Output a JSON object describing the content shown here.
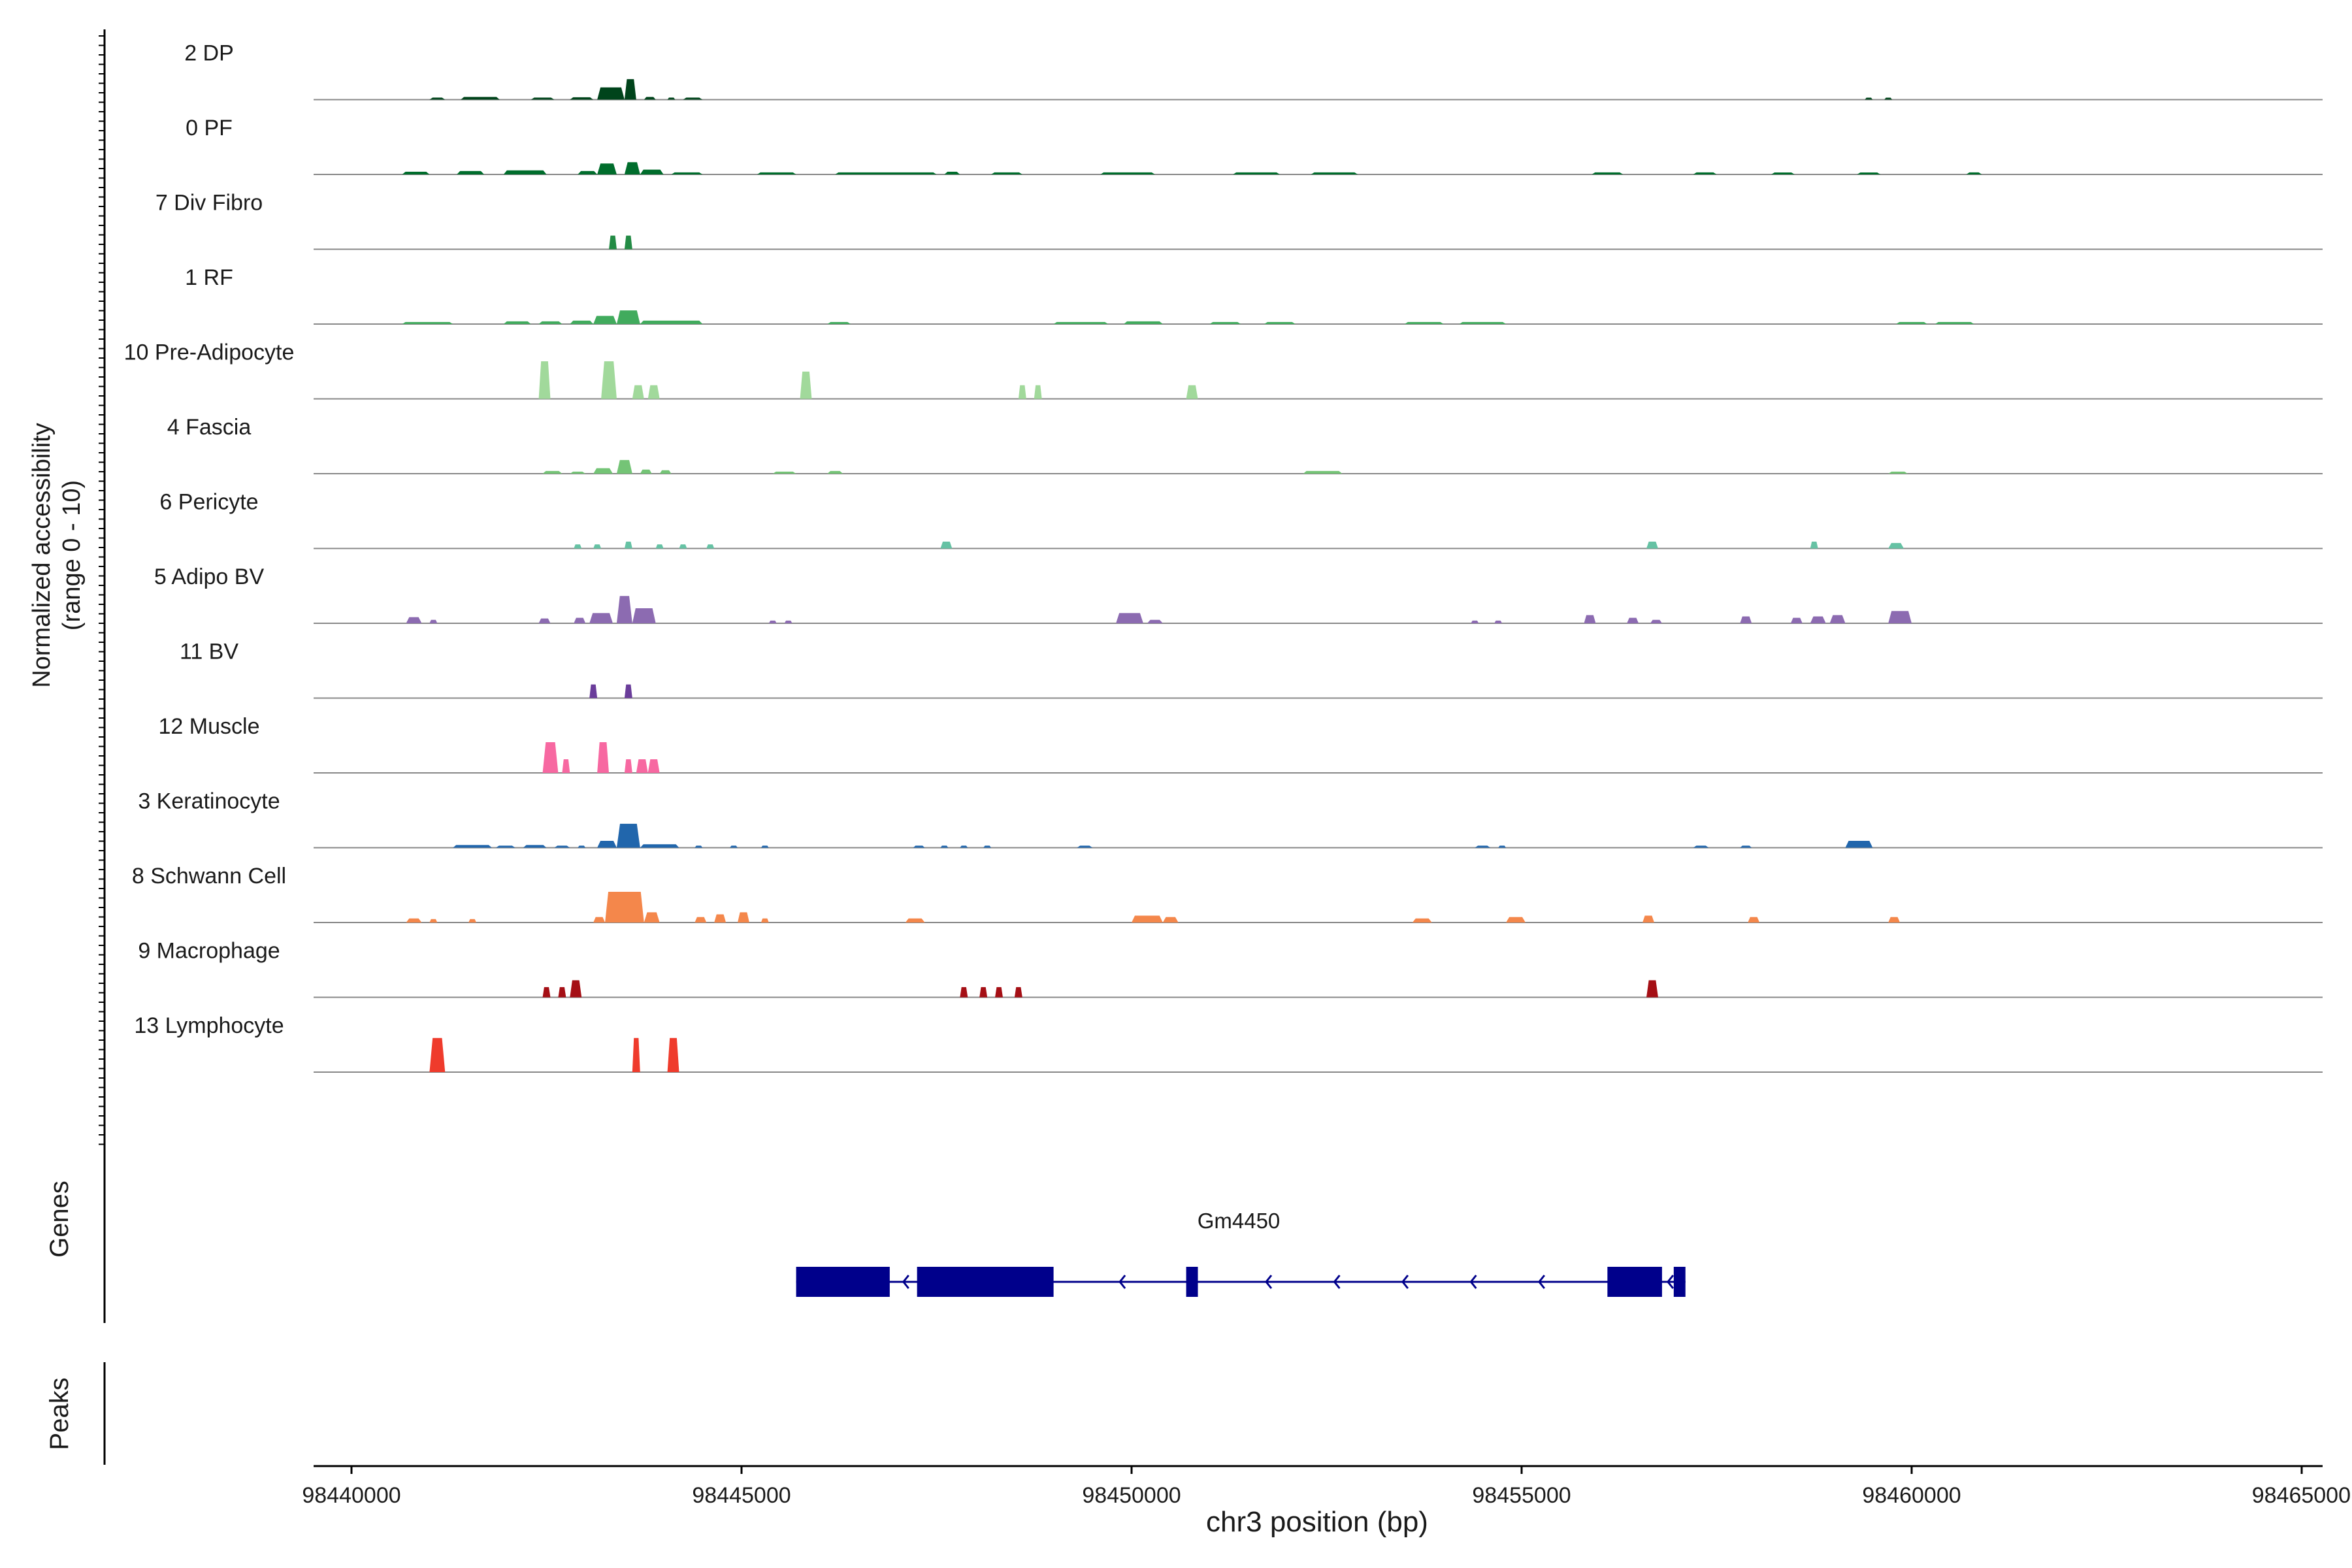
{
  "chart_data": {
    "type": "area",
    "title": "",
    "xlabel": "chr3 position (bp)",
    "ylabel": "Normalized accessibility",
    "ylabel_range": "(range 0 - 10)",
    "xlim": [
      98439500,
      98465000
    ],
    "x_ticks": [
      98440000,
      98445000,
      98450000,
      98455000,
      98460000,
      98465000
    ],
    "x_tick_labels": [
      "98440000",
      "98445000",
      "98450000",
      "98455000",
      "98460000",
      "98465000"
    ],
    "ylim": [
      0,
      10
    ],
    "grid": false,
    "legend": "none",
    "tracks": [
      {
        "name": "2 DP",
        "color": "#00441b",
        "peaks": [
          [
            98441000,
            98441200,
            0.3
          ],
          [
            98441400,
            98441900,
            0.4
          ],
          [
            98442300,
            98442600,
            0.3
          ],
          [
            98442800,
            98443100,
            0.35
          ],
          [
            98443150,
            98443500,
            1.8
          ],
          [
            98443500,
            98443650,
            3.0
          ],
          [
            98443750,
            98443900,
            0.4
          ],
          [
            98444050,
            98444150,
            0.3
          ],
          [
            98444250,
            98444500,
            0.3
          ],
          [
            98459400,
            98459500,
            0.2
          ],
          [
            98459650,
            98459750,
            0.2
          ]
        ]
      },
      {
        "name": "0 PF",
        "color": "#006d2c",
        "peaks": [
          [
            98440650,
            98441000,
            0.4
          ],
          [
            98441350,
            98441700,
            0.5
          ],
          [
            98441950,
            98442500,
            0.6
          ],
          [
            98442900,
            98443150,
            0.5
          ],
          [
            98443150,
            98443400,
            1.6
          ],
          [
            98443500,
            98443700,
            1.8
          ],
          [
            98443700,
            98444000,
            0.7
          ],
          [
            98444100,
            98444500,
            0.3
          ],
          [
            98445200,
            98445700,
            0.3
          ],
          [
            98446200,
            98447500,
            0.3
          ],
          [
            98447600,
            98447800,
            0.4
          ],
          [
            98448200,
            98448600,
            0.3
          ],
          [
            98449600,
            98450300,
            0.3
          ],
          [
            98451300,
            98451900,
            0.3
          ],
          [
            98452300,
            98452900,
            0.3
          ],
          [
            98455900,
            98456300,
            0.3
          ],
          [
            98457200,
            98457500,
            0.3
          ],
          [
            98458200,
            98458500,
            0.2
          ],
          [
            98459300,
            98459600,
            0.2
          ],
          [
            98460700,
            98460900,
            0.3
          ]
        ]
      },
      {
        "name": "7 Div Fibro",
        "color": "#238b45",
        "peaks": [
          [
            98443300,
            98443400,
            2.0
          ],
          [
            98443500,
            98443600,
            2.0
          ]
        ]
      },
      {
        "name": "1 RF",
        "color": "#41ab5d",
        "peaks": [
          [
            98440650,
            98441300,
            0.3
          ],
          [
            98441950,
            98442300,
            0.4
          ],
          [
            98442400,
            98442700,
            0.4
          ],
          [
            98442800,
            98443100,
            0.5
          ],
          [
            98443100,
            98443400,
            1.2
          ],
          [
            98443400,
            98443700,
            2.0
          ],
          [
            98443700,
            98444500,
            0.5
          ],
          [
            98446100,
            98446400,
            0.3
          ],
          [
            98449000,
            98449700,
            0.3
          ],
          [
            98449900,
            98450400,
            0.4
          ],
          [
            98451000,
            98451400,
            0.3
          ],
          [
            98451700,
            98452100,
            0.3
          ],
          [
            98453500,
            98454000,
            0.3
          ],
          [
            98454200,
            98454800,
            0.3
          ],
          [
            98459800,
            98460200,
            0.3
          ],
          [
            98460300,
            98460800,
            0.3
          ]
        ]
      },
      {
        "name": "10 Pre-Adipocyte",
        "color": "#a1d99b",
        "peaks": [
          [
            98442400,
            98442550,
            5.5
          ],
          [
            98443200,
            98443400,
            5.5
          ],
          [
            98443600,
            98443750,
            2.0
          ],
          [
            98443800,
            98443950,
            2.0
          ],
          [
            98445750,
            98445900,
            4.0
          ],
          [
            98448550,
            98448650,
            2.0
          ],
          [
            98448750,
            98448850,
            2.0
          ],
          [
            98450700,
            98450850,
            2.0
          ]
        ]
      },
      {
        "name": "4 Fascia",
        "color": "#74c476",
        "peaks": [
          [
            98442450,
            98442700,
            0.4
          ],
          [
            98442800,
            98443000,
            0.3
          ],
          [
            98443100,
            98443350,
            0.8
          ],
          [
            98443400,
            98443600,
            2.0
          ],
          [
            98443700,
            98443850,
            0.6
          ],
          [
            98443950,
            98444100,
            0.5
          ],
          [
            98445400,
            98445700,
            0.3
          ],
          [
            98446100,
            98446300,
            0.4
          ],
          [
            98452200,
            98452700,
            0.4
          ],
          [
            98459700,
            98459950,
            0.3
          ]
        ]
      },
      {
        "name": "6 Pericyte",
        "color": "#66c2a4",
        "peaks": [
          [
            98442850,
            98442950,
            0.6
          ],
          [
            98443100,
            98443200,
            0.6
          ],
          [
            98443500,
            98443600,
            1.0
          ],
          [
            98443900,
            98444000,
            0.6
          ],
          [
            98444200,
            98444300,
            0.6
          ],
          [
            98444550,
            98444650,
            0.6
          ],
          [
            98447550,
            98447700,
            1.0
          ],
          [
            98456600,
            98456750,
            1.0
          ],
          [
            98458700,
            98458800,
            1.0
          ],
          [
            98459700,
            98459900,
            0.8
          ]
        ]
      },
      {
        "name": "5 Adipo BV",
        "color": "#8c6bb1",
        "peaks": [
          [
            98440700,
            98440900,
            0.9
          ],
          [
            98441000,
            98441100,
            0.5
          ],
          [
            98442400,
            98442550,
            0.7
          ],
          [
            98442850,
            98443000,
            0.8
          ],
          [
            98443050,
            98443350,
            1.5
          ],
          [
            98443400,
            98443600,
            4.0
          ],
          [
            98443600,
            98443900,
            2.2
          ],
          [
            98445350,
            98445450,
            0.4
          ],
          [
            98445550,
            98445650,
            0.4
          ],
          [
            98449800,
            98450150,
            1.5
          ],
          [
            98450200,
            98450400,
            0.5
          ],
          [
            98454350,
            98454450,
            0.4
          ],
          [
            98454650,
            98454750,
            0.4
          ],
          [
            98455800,
            98455950,
            1.2
          ],
          [
            98456350,
            98456500,
            0.8
          ],
          [
            98456650,
            98456800,
            0.5
          ],
          [
            98457800,
            98457950,
            1.0
          ],
          [
            98458450,
            98458600,
            0.8
          ],
          [
            98458700,
            98458900,
            1.0
          ],
          [
            98458950,
            98459150,
            1.2
          ],
          [
            98459700,
            98460000,
            1.8
          ]
        ]
      },
      {
        "name": "11 BV",
        "color": "#6a3d9a",
        "peaks": [
          [
            98443050,
            98443150,
            2.0
          ],
          [
            98443500,
            98443600,
            2.0
          ]
        ]
      },
      {
        "name": "12 Muscle",
        "color": "#f768a1",
        "peaks": [
          [
            98442450,
            98442650,
            4.5
          ],
          [
            98442700,
            98442800,
            2.0
          ],
          [
            98443150,
            98443300,
            4.5
          ],
          [
            98443500,
            98443600,
            2.0
          ],
          [
            98443650,
            98443800,
            2.0
          ],
          [
            98443800,
            98443950,
            2.0
          ]
        ]
      },
      {
        "name": "3 Keratinocyte",
        "color": "#2166ac",
        "peaks": [
          [
            98441300,
            98441800,
            0.4
          ],
          [
            98441850,
            98442100,
            0.3
          ],
          [
            98442200,
            98442500,
            0.4
          ],
          [
            98442600,
            98442800,
            0.3
          ],
          [
            98442900,
            98443000,
            0.3
          ],
          [
            98443150,
            98443400,
            1.0
          ],
          [
            98443400,
            98443700,
            3.5
          ],
          [
            98443700,
            98444200,
            0.5
          ],
          [
            98444400,
            98444500,
            0.3
          ],
          [
            98444850,
            98444950,
            0.3
          ],
          [
            98445250,
            98445350,
            0.3
          ],
          [
            98447200,
            98447350,
            0.3
          ],
          [
            98447550,
            98447650,
            0.3
          ],
          [
            98447800,
            98447900,
            0.3
          ],
          [
            98448100,
            98448200,
            0.3
          ],
          [
            98449300,
            98449500,
            0.3
          ],
          [
            98454400,
            98454600,
            0.3
          ],
          [
            98454700,
            98454800,
            0.3
          ],
          [
            98457200,
            98457400,
            0.3
          ],
          [
            98457800,
            98457950,
            0.3
          ],
          [
            98459150,
            98459500,
            1.0
          ]
        ]
      },
      {
        "name": "8 Schwann Cell",
        "color": "#f4874b",
        "peaks": [
          [
            98440700,
            98440900,
            0.6
          ],
          [
            98441000,
            98441100,
            0.5
          ],
          [
            98441500,
            98441600,
            0.5
          ],
          [
            98443100,
            98443250,
            0.8
          ],
          [
            98443250,
            98443750,
            4.5
          ],
          [
            98443750,
            98443950,
            1.5
          ],
          [
            98444400,
            98444550,
            0.8
          ],
          [
            98444650,
            98444800,
            1.2
          ],
          [
            98444950,
            98445100,
            1.5
          ],
          [
            98445250,
            98445350,
            0.6
          ],
          [
            98447100,
            98447350,
            0.6
          ],
          [
            98450000,
            98450400,
            1.0
          ],
          [
            98450400,
            98450600,
            0.8
          ],
          [
            98453600,
            98453850,
            0.6
          ],
          [
            98454800,
            98455050,
            0.8
          ],
          [
            98456550,
            98456700,
            1.0
          ],
          [
            98457900,
            98458050,
            0.8
          ],
          [
            98459700,
            98459850,
            0.8
          ]
        ]
      },
      {
        "name": "9 Macrophage",
        "color": "#a50f15",
        "peaks": [
          [
            98442450,
            98442550,
            1.5
          ],
          [
            98442650,
            98442750,
            1.5
          ],
          [
            98442800,
            98442950,
            2.5
          ],
          [
            98447800,
            98447900,
            1.5
          ],
          [
            98448050,
            98448150,
            1.5
          ],
          [
            98448250,
            98448350,
            1.5
          ],
          [
            98448500,
            98448600,
            1.5
          ],
          [
            98456600,
            98456750,
            2.5
          ]
        ]
      },
      {
        "name": "13 Lymphocyte",
        "color": "#ef3b2c",
        "peaks": [
          [
            98441000,
            98441200,
            5.0
          ],
          [
            98443600,
            98443700,
            5.0
          ],
          [
            98444050,
            98444200,
            5.0
          ]
        ]
      }
    ],
    "genes": {
      "label": "Genes",
      "gene_name": "Gm4450",
      "color": "#00008b",
      "strand": "-",
      "start": 98445700,
      "end": 98457100,
      "exons": [
        [
          98445700,
          98446900
        ],
        [
          98447250,
          98449000
        ],
        [
          98450700,
          98450850
        ],
        [
          98456100,
          98456800
        ],
        [
          98456950,
          98457100
        ]
      ]
    },
    "peaks_track": {
      "label": "Peaks",
      "regions": []
    }
  }
}
